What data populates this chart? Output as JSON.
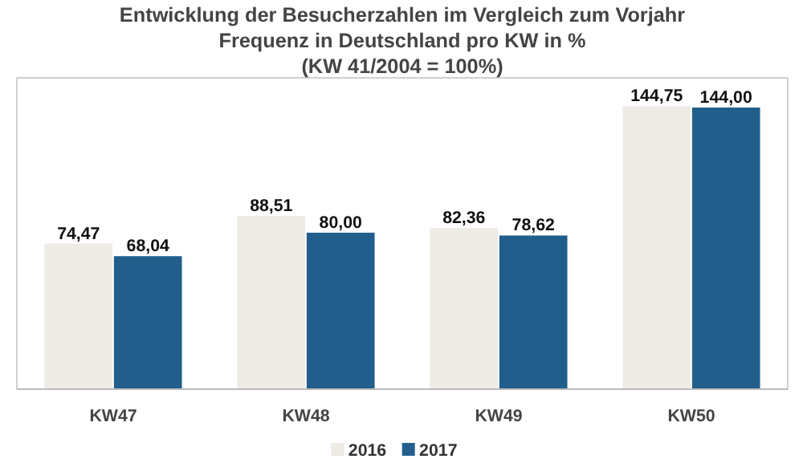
{
  "chart_data": {
    "type": "bar",
    "title": "Entwicklung der Besucherzahlen im Vergleich zum Vorjahr",
    "subtitle": "Frequenz in Deutschland pro KW in %",
    "annotations": [
      "(KW 41/2004 = 100%)"
    ],
    "categories": [
      "KW47",
      "KW48",
      "KW49",
      "KW50"
    ],
    "series": [
      {
        "name": "2016",
        "color": "#eeebe5",
        "values": [
          74.47,
          88.51,
          82.36,
          144.75
        ],
        "value_labels": [
          "74,47",
          "88,51",
          "82,36",
          "144,75"
        ]
      },
      {
        "name": "2017",
        "color": "#215e8c",
        "values": [
          68.04,
          80.0,
          78.62,
          144.0
        ],
        "value_labels": [
          "68,04",
          "80,00",
          "78,62",
          "144,00"
        ]
      }
    ],
    "tick_labels": "x",
    "legend": "bottom"
  }
}
